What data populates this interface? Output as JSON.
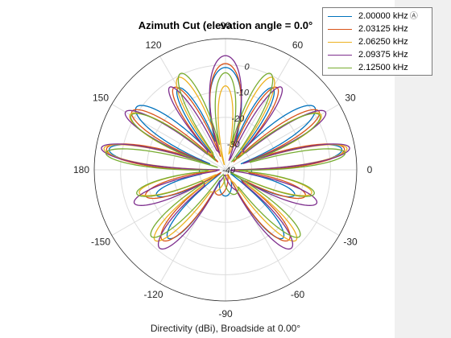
{
  "chart_data": {
    "type": "polar",
    "title": "Azimuth Cut (elevation angle = 0.0°",
    "xlabel": "Directivity (dBi), Broadside at 0.00°",
    "angle_ticks": [
      {
        "deg": 0,
        "label": "0"
      },
      {
        "deg": 30,
        "label": "30"
      },
      {
        "deg": 60,
        "label": "60"
      },
      {
        "deg": 90,
        "label": "90"
      },
      {
        "deg": 120,
        "label": "120"
      },
      {
        "deg": 150,
        "label": "150"
      },
      {
        "deg": 180,
        "label": "180"
      },
      {
        "deg": 210,
        "label": "-150"
      },
      {
        "deg": 240,
        "label": "-120"
      },
      {
        "deg": 270,
        "label": "-90"
      },
      {
        "deg": 300,
        "label": "-60"
      },
      {
        "deg": 330,
        "label": "-30"
      }
    ],
    "rlim": [
      -40,
      10
    ],
    "r_ticks": [
      {
        "value": -40,
        "label": "-40"
      },
      {
        "value": -30,
        "label": "-30"
      },
      {
        "value": -20,
        "label": "-20"
      },
      {
        "value": -10,
        "label": "-10"
      },
      {
        "value": 0,
        "label": "0"
      }
    ],
    "grid": true,
    "legend_position": "top-right",
    "series": [
      {
        "name": "2.00000 kHz",
        "color": "#0072bd",
        "pinned": true,
        "beams": [
          {
            "az": 90,
            "peak": -1,
            "width": 13
          },
          {
            "az": 145,
            "peak": 1.5,
            "width": 8
          },
          {
            "az": 170,
            "peak": 5,
            "width": 6
          },
          {
            "az": 120,
            "peak": -4,
            "width": 7
          },
          {
            "az": 200,
            "peak": -12,
            "width": 8
          },
          {
            "az": 230,
            "peak": -6,
            "width": 8
          }
        ]
      },
      {
        "name": "2.03125 kHz",
        "color": "#d95319",
        "beams": [
          {
            "az": 90,
            "peak": 0.5,
            "width": 12
          },
          {
            "az": 148,
            "peak": 2,
            "width": 7
          },
          {
            "az": 170,
            "peak": 6,
            "width": 6
          },
          {
            "az": 122,
            "peak": -3,
            "width": 7
          },
          {
            "az": 198,
            "peak": -8,
            "width": 8
          },
          {
            "az": 228,
            "peak": -4,
            "width": 9
          }
        ]
      },
      {
        "name": "2.06250 kHz",
        "color": "#edb120",
        "beams": [
          {
            "az": 90,
            "peak": -8,
            "width": 8
          },
          {
            "az": 117,
            "peak": -0.5,
            "width": 7
          },
          {
            "az": 150,
            "peak": 2,
            "width": 7
          },
          {
            "az": 170,
            "peak": 7,
            "width": 5
          },
          {
            "az": 195,
            "peak": -6,
            "width": 7
          },
          {
            "az": 225,
            "peak": -2,
            "width": 7
          }
        ]
      },
      {
        "name": "2.09375 kHz",
        "color": "#7e2f8e",
        "beams": [
          {
            "az": 90,
            "peak": 3.5,
            "width": 11
          },
          {
            "az": 124,
            "peak": -2,
            "width": 6
          },
          {
            "az": 150,
            "peak": 4,
            "width": 6
          },
          {
            "az": 170,
            "peak": 8,
            "width": 5
          },
          {
            "az": 200,
            "peak": -3,
            "width": 7
          },
          {
            "az": 230,
            "peak": -1,
            "width": 8
          }
        ]
      },
      {
        "name": "2.12500 kHz",
        "color": "#77ac30",
        "beams": [
          {
            "az": 90,
            "peak": -3,
            "width": 9
          },
          {
            "az": 115,
            "peak": 0.5,
            "width": 7
          },
          {
            "az": 150,
            "peak": 1.5,
            "width": 7
          },
          {
            "az": 172,
            "peak": 6,
            "width": 5
          },
          {
            "az": 195,
            "peak": -5,
            "width": 7
          },
          {
            "az": 222,
            "peak": -2,
            "width": 7
          }
        ]
      }
    ]
  },
  "legend": {
    "pin_icon": "pin-icon"
  }
}
